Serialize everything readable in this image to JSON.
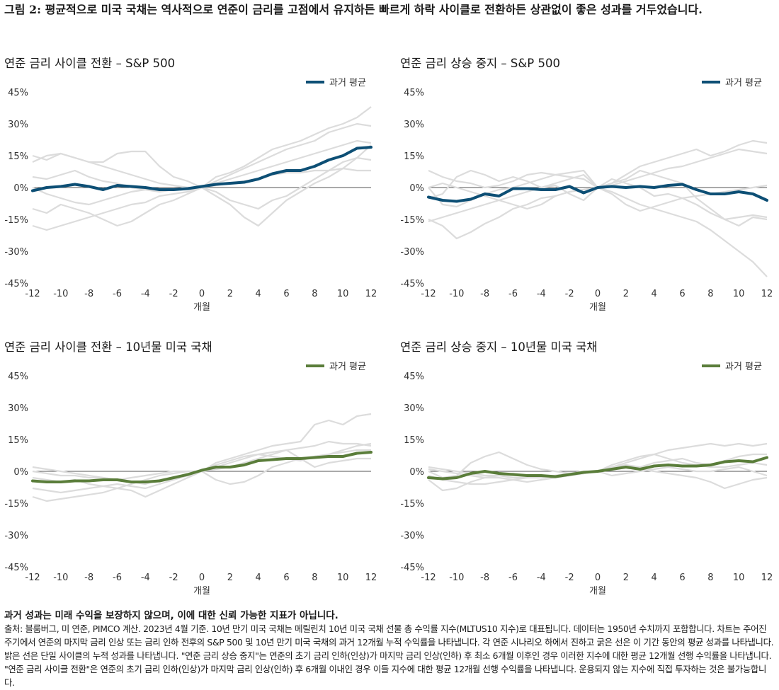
{
  "figure_title": "그림 2: 평균적으로 미국 국채는 역사적으로 연준이 금리를 고점에서 유지하든 빠르게 하락 사이클로 전환하든 상관없이 좋은 성과를 거두었습니다.",
  "disclaimer_bold": "과거 성과는 미래 수익을 보장하지 않으며, 이에 대한 신뢰 가능한 지표가 아닙니다.",
  "footnote": "출처: 블룸버그, 미 연준, PIMCO 계산. 2023년 4월 기준. 10년 만기 미국 국채는 메릴린치 10년 미국 국채 선물 총 수익률 지수(MLTUS10 지수)로 대표됩니다. 데이터는 1950년 수치까지 포함합니다. 차트는 주어진 주기에서 연준의 마지막 금리 인상 또는 금리 인하 전후의 S&P 500 및 10년 만기 미국 국채의 과거 12개월 누적 수익률을 나타냅니다. 각 연준 시나리오 하에서 진하고 굵은 선은 이 기간 동안의 평균 성과를 나타냅니다. 밝은 선은 단일 사이클의 누적 성과를 나타냅니다. \"연준 금리 상승 중지\"는 연준의 초기 금리 인하(인상)가 마지막 금리 인상(인하) 후 최소 6개월 이후인 경우 이러한 지수에 대한 평균 12개월 선행 수익률을 나타냅니다. \"연준 금리 사이클 전환\"은 연준의 초기 금리 인하(인상)가 마지막 금리 인상(인하) 후 6개월 이내인 경우 이들 지수에 대한 평균 12개월 선행 수익률을 나타냅니다. 운용되지 않는 지수에 직접 투자하는 것은 불가능합니다.",
  "colors": {
    "sp500_avg": "#0d4f75",
    "ust_avg": "#5a7d3a",
    "history": "#dcdcdc",
    "axis": "#555555"
  },
  "chart_data": [
    {
      "type": "line",
      "title": "연준 금리 사이클 전환 – S&P 500",
      "xlabel": "개월",
      "x_ticks": [
        -12,
        -10,
        -8,
        -6,
        -4,
        -2,
        0,
        2,
        4,
        6,
        8,
        10,
        12
      ],
      "y_ticks": [
        "45%",
        "30%",
        "15%",
        "0%",
        "-15%",
        "-30%",
        "-45%"
      ],
      "xlim": [
        -12,
        12
      ],
      "ylim": [
        -45,
        45
      ],
      "legend": "top-right",
      "avg_color_key": "sp500_avg",
      "x": [
        -12,
        -11,
        -10,
        -9,
        -8,
        -7,
        -6,
        -5,
        -4,
        -3,
        -2,
        -1,
        0,
        1,
        2,
        3,
        4,
        5,
        6,
        7,
        8,
        9,
        10,
        11,
        12
      ],
      "series": [
        {
          "name": "과거 평균",
          "values": [
            -1.5,
            0,
            0.5,
            1.5,
            0.5,
            -1,
            1,
            0.5,
            0,
            -1,
            -1,
            -0.5,
            0.5,
            1.5,
            2,
            2.5,
            4,
            6.5,
            8,
            8,
            10,
            13,
            15,
            18.5,
            19
          ]
        }
      ],
      "history": [
        [
          12,
          15,
          16,
          14,
          12,
          12,
          16,
          17,
          17,
          10,
          5,
          3,
          0,
          5,
          7,
          10,
          14,
          18,
          20,
          22,
          25,
          28,
          30,
          33,
          38
        ],
        [
          -10,
          -12,
          -8,
          -10,
          -12,
          -15,
          -18,
          -16,
          -12,
          -8,
          -6,
          -3,
          0,
          -4,
          -8,
          -14,
          -18,
          -12,
          -6,
          -2,
          2,
          5,
          9,
          14,
          20
        ],
        [
          -18,
          -20,
          -18,
          -16,
          -14,
          -12,
          -10,
          -8,
          -7,
          -4,
          -3,
          -2,
          0,
          2,
          4,
          6,
          8,
          10,
          12,
          14,
          16,
          18,
          20,
          22,
          21
        ],
        [
          5,
          4,
          6,
          8,
          5,
          3,
          2,
          0,
          -1,
          -2,
          -1,
          0,
          0,
          -2,
          -6,
          -8,
          -10,
          -6,
          -4,
          0,
          4,
          8,
          12,
          14,
          13
        ],
        [
          0,
          -3,
          -5,
          -7,
          -8,
          -6,
          -4,
          -2,
          -1,
          -1,
          -1,
          -1,
          0,
          3,
          6,
          9,
          12,
          15,
          18,
          20,
          22,
          26,
          28,
          30,
          29
        ],
        [
          15,
          13,
          16,
          14,
          12,
          10,
          8,
          6,
          4,
          2,
          1,
          0,
          0,
          1,
          2,
          3,
          4,
          6,
          7,
          7,
          8,
          8,
          9,
          8,
          8
        ]
      ]
    },
    {
      "type": "line",
      "title": "연준 금리 상승 중지 – S&P 500",
      "xlabel": "개월",
      "x_ticks": [
        -12,
        -10,
        -8,
        -6,
        -4,
        -2,
        0,
        2,
        4,
        6,
        8,
        10,
        12
      ],
      "y_ticks": [
        "45%",
        "30%",
        "15%",
        "0%",
        "-15%",
        "-30%",
        "-45%"
      ],
      "xlim": [
        -12,
        12
      ],
      "ylim": [
        -45,
        45
      ],
      "legend": "top-right",
      "avg_color_key": "sp500_avg",
      "x": [
        -12,
        -11,
        -10,
        -9,
        -8,
        -7,
        -6,
        -5,
        -4,
        -3,
        -2,
        -1,
        0,
        1,
        2,
        3,
        4,
        5,
        6,
        7,
        8,
        9,
        10,
        11,
        12
      ],
      "series": [
        {
          "name": "과거 평균",
          "values": [
            -4.5,
            -6,
            -6.5,
            -5.5,
            -3,
            -4,
            -0.5,
            -0.5,
            -1,
            -1,
            0.5,
            -2.5,
            0,
            0.5,
            0,
            0.5,
            0,
            1,
            1.5,
            -1,
            -3,
            -3,
            -2,
            -3,
            -6
          ]
        }
      ],
      "history": [
        [
          -5,
          -3,
          5,
          8,
          6,
          3,
          5,
          3,
          0,
          2,
          4,
          6,
          0,
          2,
          6,
          10,
          12,
          14,
          16,
          18,
          15,
          17,
          20,
          22,
          21
        ],
        [
          -15,
          -18,
          -24,
          -21,
          -17,
          -14,
          -10,
          -8,
          -5,
          -4,
          -2,
          -1,
          0,
          -2,
          -5,
          -8,
          -10,
          -12,
          -14,
          -16,
          -20,
          -25,
          -30,
          -35,
          -42
        ],
        [
          0,
          -8,
          -9,
          -6,
          -3,
          -1,
          0,
          2,
          4,
          6,
          7,
          8,
          0,
          2,
          4,
          8,
          6,
          4,
          2,
          -5,
          -10,
          -15,
          -18,
          -14,
          -15
        ],
        [
          0,
          2,
          0,
          -2,
          -4,
          -6,
          -8,
          -10,
          -8,
          -4,
          -2,
          -1,
          0,
          -3,
          -8,
          -11,
          -9,
          -7,
          -5,
          -4,
          -3,
          -2,
          -1,
          0,
          1
        ],
        [
          8,
          5,
          3,
          2,
          0,
          1,
          3,
          6,
          7,
          6,
          5,
          4,
          0,
          1,
          3,
          5,
          7,
          9,
          10,
          12,
          14,
          16,
          18,
          17,
          16
        ],
        [
          -16,
          -14,
          -12,
          -10,
          -8,
          -6,
          -4,
          -2,
          0,
          1,
          -3,
          -6,
          0,
          4,
          2,
          0,
          -4,
          -3,
          -5,
          -8,
          -12,
          -15,
          -14,
          -13,
          -14
        ]
      ]
    },
    {
      "type": "line",
      "title": "연준 금리 사이클 전환 – 10년물 미국 국채",
      "xlabel": "개월",
      "x_ticks": [
        -12,
        -10,
        -8,
        -6,
        -4,
        -2,
        0,
        2,
        4,
        6,
        8,
        10,
        12
      ],
      "y_ticks": [
        "45%",
        "30%",
        "15%",
        "0%",
        "-15%",
        "-30%",
        "-45%"
      ],
      "xlim": [
        -12,
        12
      ],
      "ylim": [
        -45,
        45
      ],
      "legend": "top-right",
      "avg_color_key": "ust_avg",
      "x": [
        -12,
        -11,
        -10,
        -9,
        -8,
        -7,
        -6,
        -5,
        -4,
        -3,
        -2,
        -1,
        0,
        1,
        2,
        3,
        4,
        5,
        6,
        7,
        8,
        9,
        10,
        11,
        12
      ],
      "series": [
        {
          "name": "과거 평균",
          "values": [
            -4.5,
            -5,
            -5,
            -4.5,
            -4.5,
            -4,
            -4,
            -5,
            -5,
            -4.5,
            -3,
            -1.5,
            0.5,
            2,
            2,
            3,
            5,
            5.5,
            6,
            6,
            6.5,
            7,
            7,
            8.5,
            9
          ]
        }
      ],
      "history": [
        [
          -8,
          -9,
          -10,
          -9,
          -8,
          -7,
          -6,
          -7,
          -8,
          -6,
          -4,
          -2,
          0,
          4,
          6,
          8,
          10,
          12,
          13,
          14,
          22,
          24,
          22,
          26,
          27
        ],
        [
          -12,
          -14,
          -13,
          -12,
          -11,
          -10,
          -8,
          -9,
          -12,
          -9,
          -6,
          -3,
          0,
          -4,
          -6,
          -5,
          -2,
          2,
          4,
          6,
          7,
          8,
          10,
          12,
          13
        ],
        [
          2,
          1,
          0,
          -1,
          -2,
          -3,
          -4,
          -3,
          -2,
          -1,
          0,
          0,
          0,
          2,
          4,
          6,
          8,
          9,
          10,
          11,
          12,
          14,
          13,
          13,
          12
        ],
        [
          -3,
          -4,
          -5,
          -4,
          -6,
          -7,
          -8,
          -6,
          -4,
          -2,
          -1,
          0,
          0,
          3,
          5,
          7,
          8,
          7,
          6,
          5,
          7,
          8,
          9,
          10,
          10
        ],
        [
          0,
          -1,
          -2,
          -2,
          -3,
          -3,
          -4,
          -5,
          -6,
          -4,
          -3,
          -2,
          0,
          1,
          2,
          4,
          6,
          8,
          10,
          6,
          2,
          4,
          5,
          6,
          6
        ]
      ]
    },
    {
      "type": "line",
      "title": "연준 금리 상승 중지 – 10년물 미국 국채",
      "xlabel": "개월",
      "x_ticks": [
        -12,
        -10,
        -8,
        -6,
        -4,
        -2,
        0,
        2,
        4,
        6,
        8,
        10,
        12
      ],
      "y_ticks": [
        "45%",
        "30%",
        "15%",
        "0%",
        "-15%",
        "-30%",
        "-45%"
      ],
      "xlim": [
        -12,
        12
      ],
      "ylim": [
        -45,
        45
      ],
      "legend": "top-right",
      "avg_color_key": "ust_avg",
      "x": [
        -12,
        -11,
        -10,
        -9,
        -8,
        -7,
        -6,
        -5,
        -4,
        -3,
        -2,
        -1,
        0,
        1,
        2,
        3,
        4,
        5,
        6,
        7,
        8,
        9,
        10,
        11,
        12
      ],
      "series": [
        {
          "name": "과거 평균",
          "values": [
            -3,
            -3.5,
            -3,
            -1,
            0,
            -1,
            -1.5,
            -2,
            -2,
            -2.5,
            -1.5,
            -0.5,
            0,
            1,
            2,
            1,
            2.5,
            3,
            2.5,
            2.5,
            3,
            4.5,
            5,
            4.5,
            6.5
          ]
        }
      ],
      "history": [
        [
          0,
          -3,
          -2,
          4,
          7,
          9,
          6,
          3,
          1,
          0,
          -1,
          -1,
          0,
          2,
          4,
          6,
          8,
          10,
          11,
          12,
          13,
          12,
          13,
          12,
          13
        ],
        [
          -4,
          -9,
          -8,
          -5,
          -3,
          -2,
          -1,
          -2,
          -3,
          -2,
          -1,
          -1,
          0,
          1,
          2,
          1,
          0,
          -1,
          -2,
          -3,
          -5,
          -8,
          -6,
          -4,
          -3
        ],
        [
          2,
          1,
          0,
          -1,
          -2,
          -2,
          -3,
          -3,
          -2,
          -2,
          -1,
          0,
          0,
          2,
          3,
          2,
          4,
          5,
          6,
          4,
          3,
          5,
          7,
          8,
          8
        ],
        [
          -2,
          -4,
          -5,
          -6,
          -6,
          -5,
          -4,
          -3,
          -3,
          -2,
          -1,
          0,
          0,
          3,
          5,
          7,
          8,
          6,
          4,
          3,
          2,
          2,
          3,
          4,
          3
        ],
        [
          1,
          0,
          -1,
          -2,
          -3,
          -3,
          -4,
          -5,
          -4,
          -3,
          -2,
          -1,
          0,
          -2,
          -1,
          0,
          1,
          2,
          1,
          0,
          0,
          1,
          2,
          0,
          -2
        ]
      ]
    }
  ]
}
